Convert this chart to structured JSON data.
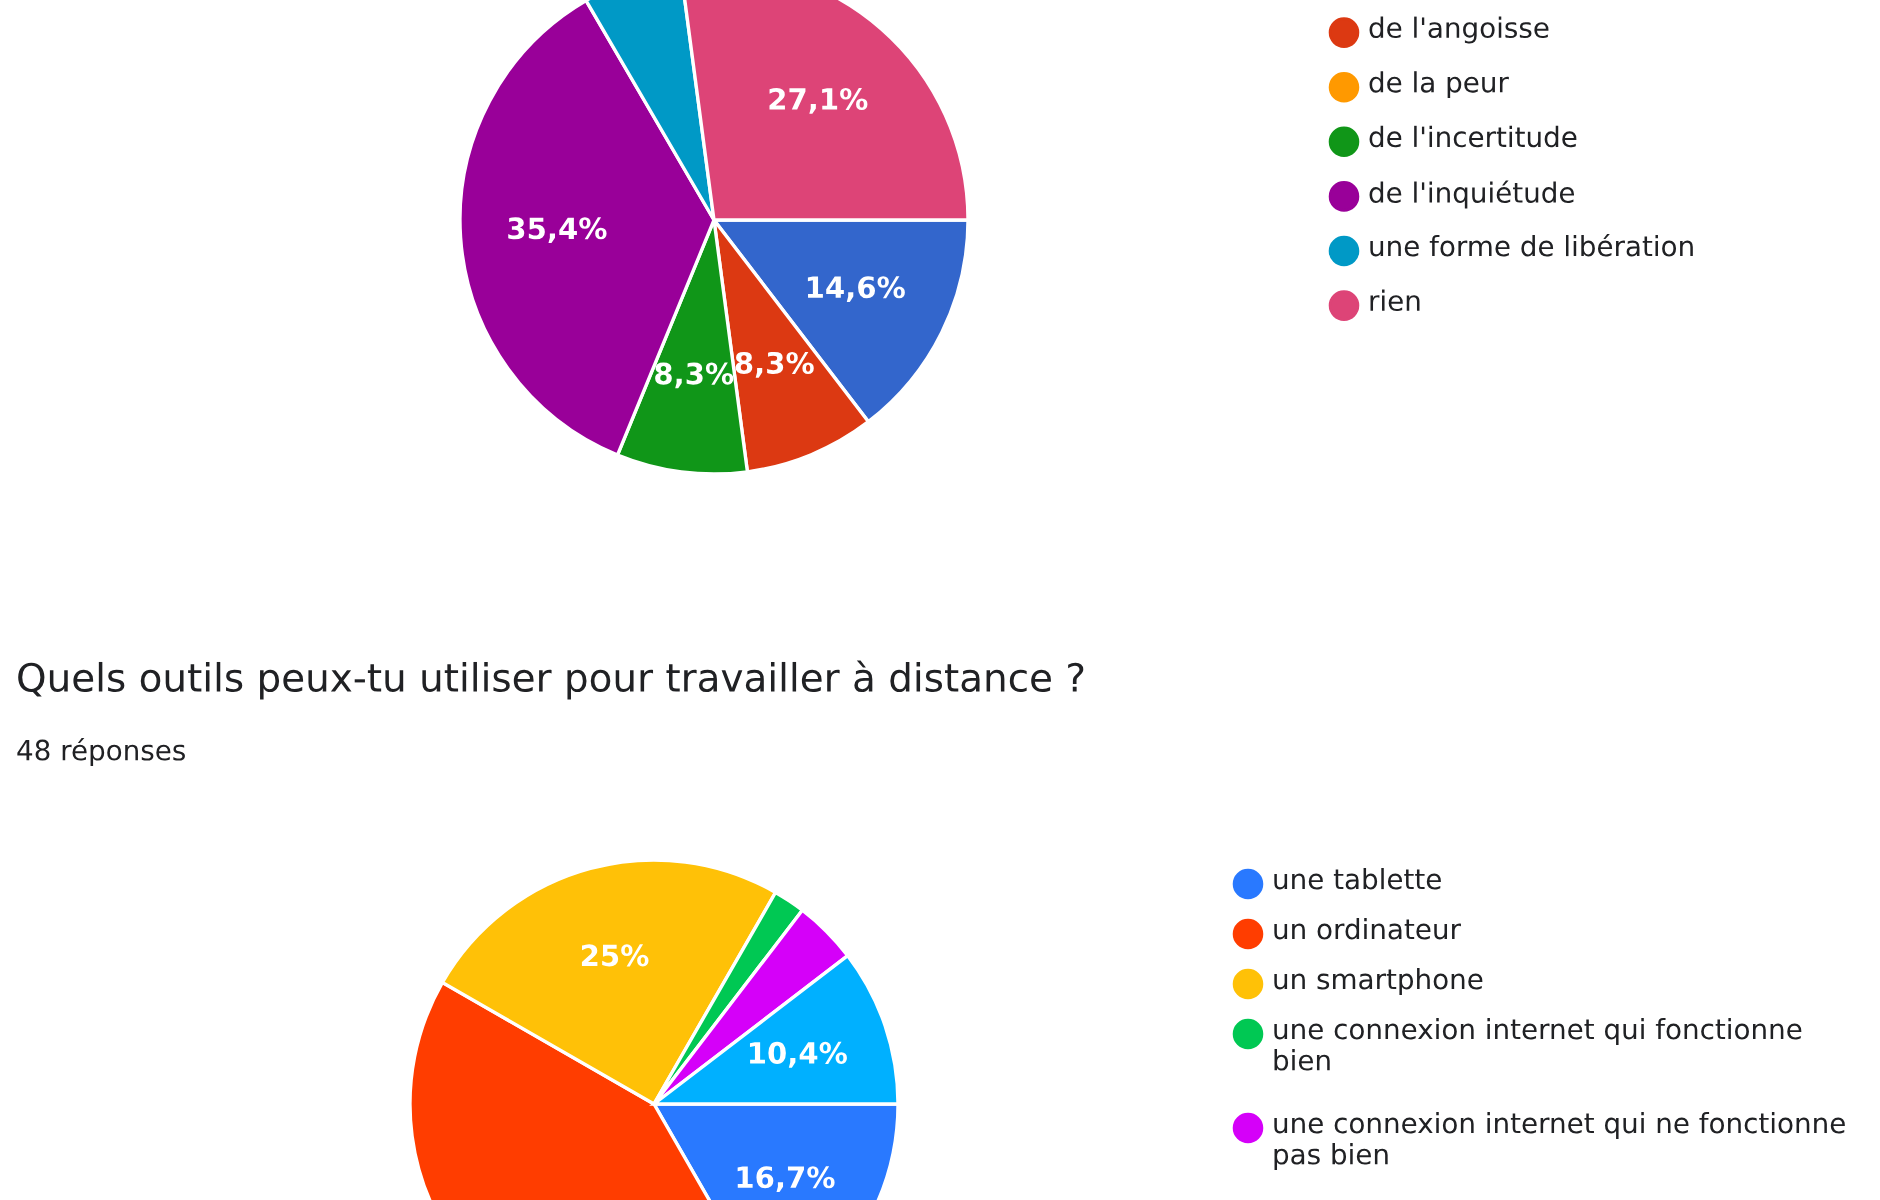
{
  "chart_data": [
    {
      "type": "pie",
      "categories": [
        null,
        "de l'angoisse",
        "de la peur",
        "de l'incertitude",
        "de l'inquiétude",
        "une forme de libération",
        "rien"
      ],
      "values": [
        14.6,
        8.3,
        0,
        8.3,
        35.4,
        6.3,
        27.1
      ],
      "colors": [
        "#3366cc",
        "#dc3912",
        "#ff9900",
        "#109618",
        "#990099",
        "#0099c6",
        "#dd4477"
      ],
      "value_labels": [
        "14,6%",
        "8,3%",
        null,
        "8,3%",
        "35,4%",
        null,
        "27,1%"
      ],
      "legend": "right"
    },
    {
      "type": "pie",
      "title": "Quels outils peux-tu utiliser pour travailler à distance ?",
      "subtitle": "48 réponses",
      "categories": [
        "une tablette",
        "un ordinateur",
        "un smartphone",
        "une connexion internet qui fonctionne bien",
        "une connexion internet qui ne fonctionne pas bien",
        null
      ],
      "values": [
        16.7,
        41.6,
        25,
        2.1,
        4.2,
        10.4
      ],
      "colors": [
        "#2979ff",
        "#ff3d00",
        "#ffc107",
        "#00c853",
        "#d500f9",
        "#00b0ff"
      ],
      "value_labels": [
        "16,7%",
        null,
        "25%",
        null,
        null,
        "10,4%"
      ],
      "legend": "right"
    }
  ]
}
